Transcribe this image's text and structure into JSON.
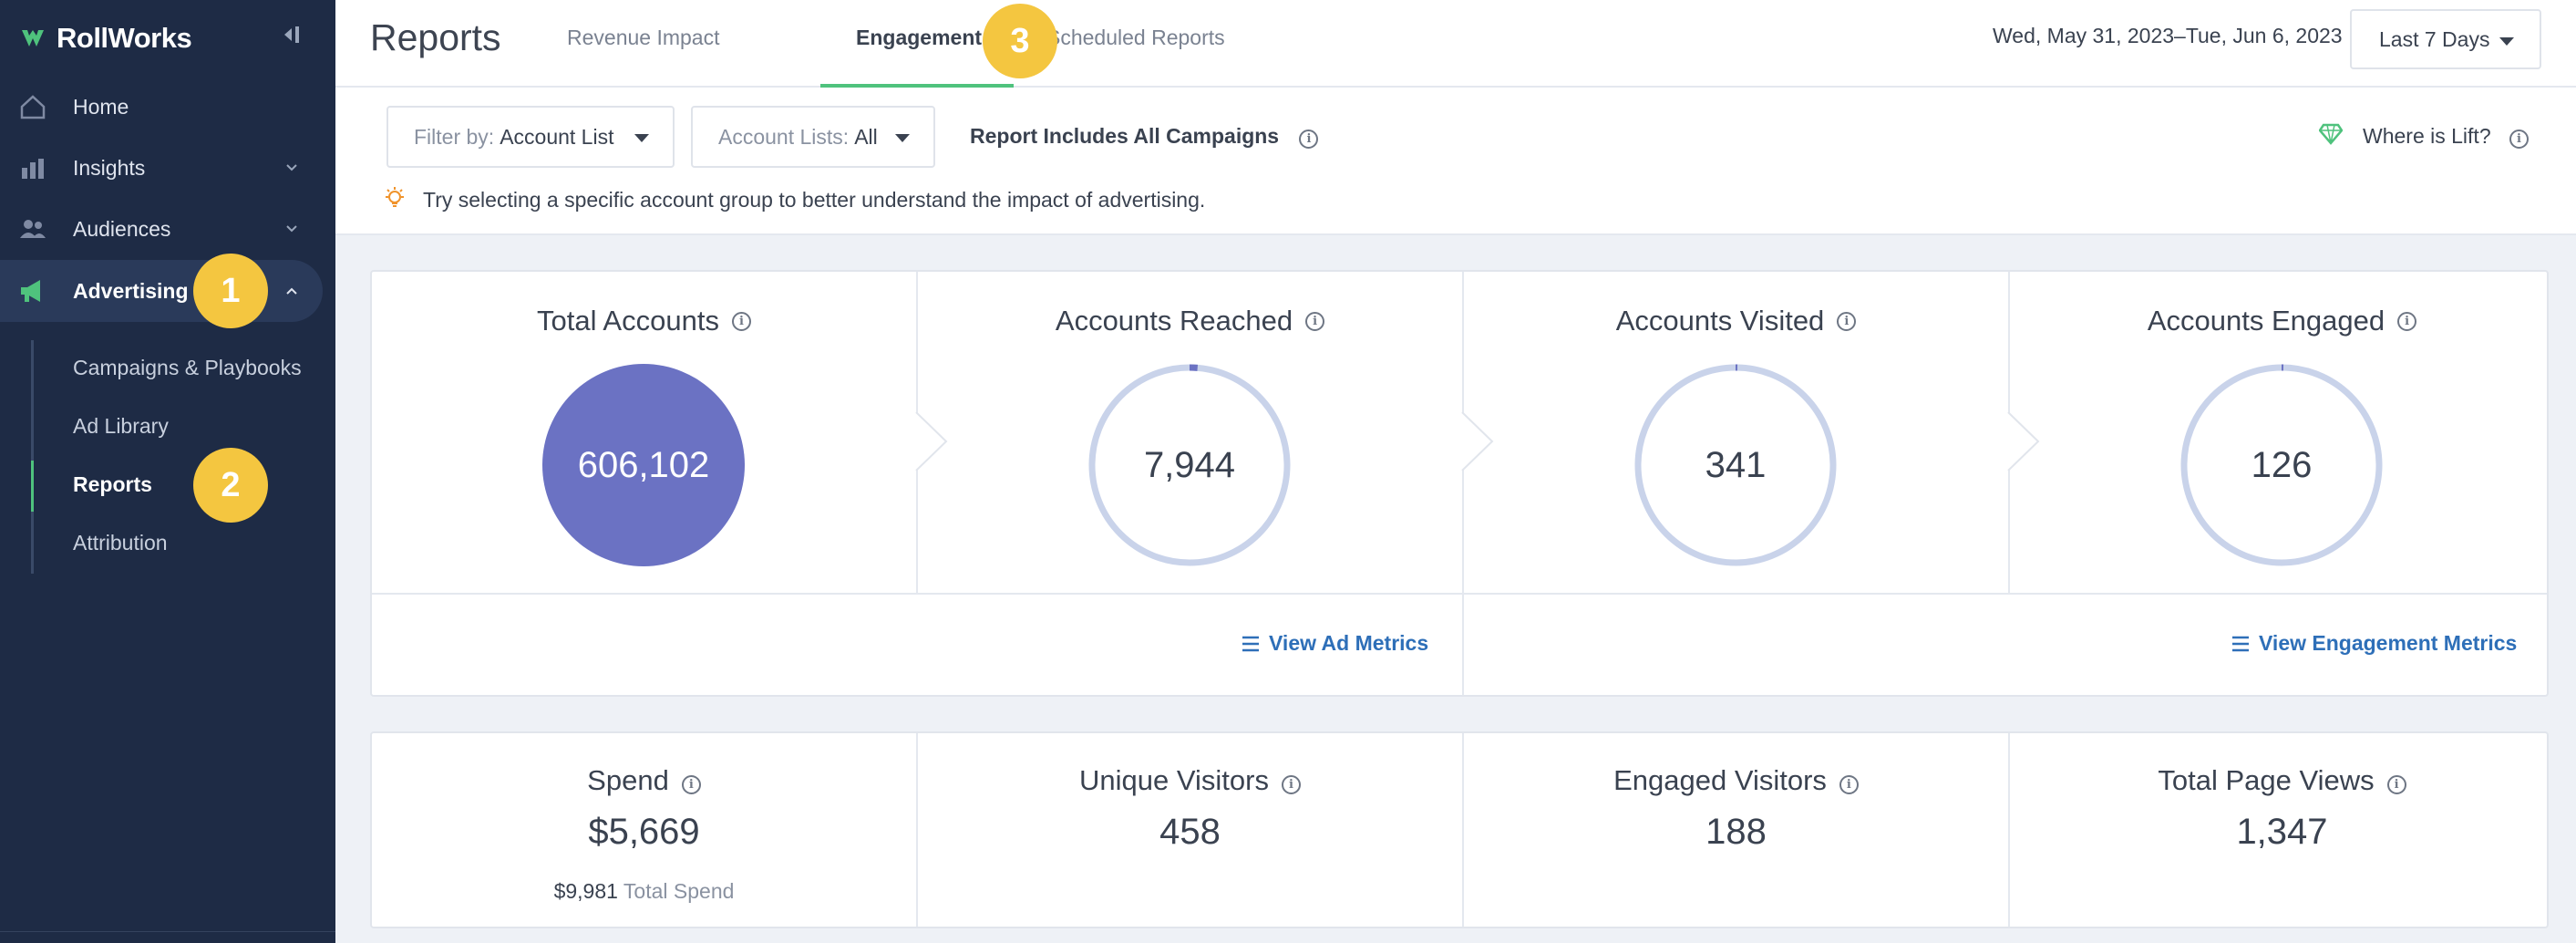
{
  "app": {
    "brand": "RollWorks",
    "brand_color": "#4fc27d",
    "sidebar_bg": "#1e2b45"
  },
  "sidebar": {
    "items": [
      {
        "label": "Home",
        "icon": "home-icon"
      },
      {
        "label": "Insights",
        "icon": "insights-icon"
      },
      {
        "label": "Audiences",
        "icon": "audiences-icon"
      },
      {
        "label": "Advertising",
        "icon": "megaphone-icon",
        "active": true
      }
    ],
    "sub_items": [
      {
        "label": "Campaigns & Playbooks"
      },
      {
        "label": "Ad Library"
      },
      {
        "label": "Reports",
        "active": true
      },
      {
        "label": "Attribution"
      }
    ]
  },
  "badges": [
    "1",
    "2",
    "3"
  ],
  "header": {
    "title": "Reports",
    "tabs": [
      {
        "label": "Revenue Impact"
      },
      {
        "label": "Engagement",
        "active": true
      },
      {
        "label": "Scheduled Reports"
      }
    ],
    "date_range": "Wed, May 31, 2023–Tue, Jun 6, 2023",
    "period_select": "Last 7 Days"
  },
  "filters": {
    "filter_by_label": "Filter by:",
    "filter_by_value": "Account List",
    "account_lists_label": "Account Lists:",
    "account_lists_value": "All",
    "report_note": "Report Includes All Campaigns",
    "where_lift": "Where is Lift?",
    "tip": "Try selecting a specific account group to better understand the impact of advertising."
  },
  "funnel": [
    {
      "title": "Total Accounts",
      "value": "606,102",
      "fraction": 1.0
    },
    {
      "title": "Accounts Reached",
      "value": "7,944",
      "fraction": 0.013
    },
    {
      "title": "Accounts Visited",
      "value": "341",
      "fraction": 0.0006
    },
    {
      "title": "Accounts Engaged",
      "value": "126",
      "fraction": 0.0002
    }
  ],
  "links": {
    "ad_metrics": "View Ad Metrics",
    "engagement_metrics": "View Engagement Metrics"
  },
  "metrics": [
    {
      "title": "Spend",
      "value": "$5,669",
      "sub_value": "$9,981",
      "sub_label": "Total Spend"
    },
    {
      "title": "Unique Visitors",
      "value": "458"
    },
    {
      "title": "Engaged Visitors",
      "value": "188"
    },
    {
      "title": "Total Page Views",
      "value": "1,347"
    }
  ],
  "colors": {
    "filled_circle": "#6b72c3",
    "ring": "#c9d3ea",
    "ring_progress": "#6b72c3",
    "badge": "#f4c640",
    "link": "#2e6fb8",
    "tip_icon": "#f0932b"
  }
}
